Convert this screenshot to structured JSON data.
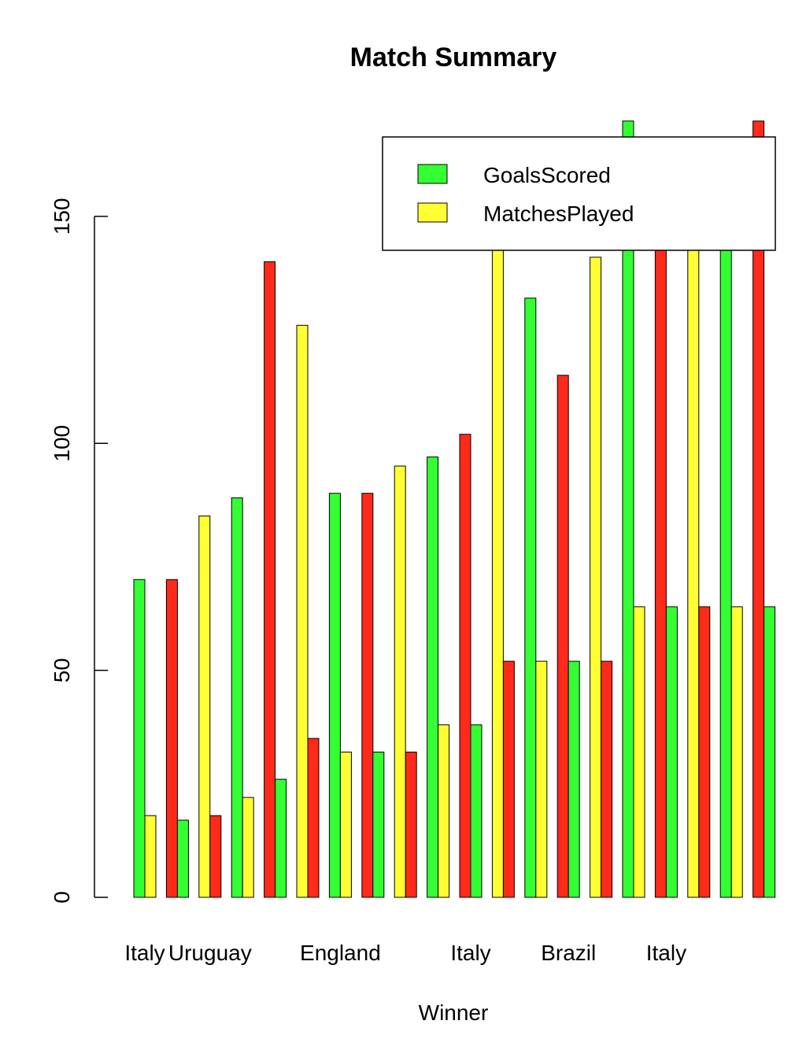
{
  "chart_data": {
    "type": "bar",
    "title": "Match Summary",
    "xlabel": "Winner",
    "ylabel": "",
    "ylim": [
      0,
      172
    ],
    "yticks": [
      0,
      50,
      100,
      150
    ],
    "x_tick_labels": [
      {
        "label": "Italy",
        "group": 1
      },
      {
        "label": "Uruguay",
        "group": 3
      },
      {
        "label": "England",
        "group": 7
      },
      {
        "label": "Italy",
        "group": 11
      },
      {
        "label": "Brazil",
        "group": 14
      },
      {
        "label": "Italy",
        "group": 17
      }
    ],
    "colors": [
      "#33ff33",
      "#ffff33",
      "#ff2a1a"
    ],
    "legend": {
      "position": "top-right",
      "entries": [
        {
          "label": "GoalsScored",
          "color": "#33ff33"
        },
        {
          "label": "MatchesPlayed",
          "color": "#ffff33"
        }
      ]
    },
    "groups": [
      {
        "values": [
          70,
          18
        ],
        "colors": [
          "#33ff33",
          "#ffff33"
        ]
      },
      {
        "values": [
          70,
          17
        ],
        "colors": [
          "#ff2a1a",
          "#33ff33"
        ]
      },
      {
        "values": [
          84,
          18
        ],
        "colors": [
          "#ffff33",
          "#ff2a1a"
        ]
      },
      {
        "values": [
          88,
          22
        ],
        "colors": [
          "#33ff33",
          "#ffff33"
        ]
      },
      {
        "values": [
          140,
          26
        ],
        "colors": [
          "#ff2a1a",
          "#33ff33"
        ]
      },
      {
        "values": [
          126,
          35
        ],
        "colors": [
          "#ffff33",
          "#ff2a1a"
        ]
      },
      {
        "values": [
          89,
          32
        ],
        "colors": [
          "#33ff33",
          "#ffff33"
        ]
      },
      {
        "values": [
          89,
          32
        ],
        "colors": [
          "#ff2a1a",
          "#33ff33"
        ]
      },
      {
        "values": [
          95,
          32
        ],
        "colors": [
          "#ffff33",
          "#ff2a1a"
        ]
      },
      {
        "values": [
          97,
          38
        ],
        "colors": [
          "#33ff33",
          "#ffff33"
        ]
      },
      {
        "values": [
          102,
          38
        ],
        "colors": [
          "#ff2a1a",
          "#33ff33"
        ]
      },
      {
        "values": [
          146,
          52
        ],
        "colors": [
          "#ffff33",
          "#ff2a1a"
        ]
      },
      {
        "values": [
          132,
          52
        ],
        "colors": [
          "#33ff33",
          "#ffff33"
        ]
      },
      {
        "values": [
          115,
          52
        ],
        "colors": [
          "#ff2a1a",
          "#33ff33"
        ]
      },
      {
        "values": [
          141,
          52
        ],
        "colors": [
          "#ffff33",
          "#ff2a1a"
        ]
      },
      {
        "values": [
          171,
          64
        ],
        "colors": [
          "#33ff33",
          "#ffff33"
        ]
      },
      {
        "values": [
          146,
          64
        ],
        "colors": [
          "#ff2a1a",
          "#33ff33"
        ]
      },
      {
        "values": [
          146,
          64
        ],
        "colors": [
          "#ffff33",
          "#ff2a1a"
        ]
      },
      {
        "values": [
          146,
          64
        ],
        "colors": [
          "#33ff33",
          "#ffff33"
        ]
      },
      {
        "values": [
          171,
          64
        ],
        "colors": [
          "#ff2a1a",
          "#33ff33"
        ]
      }
    ]
  }
}
